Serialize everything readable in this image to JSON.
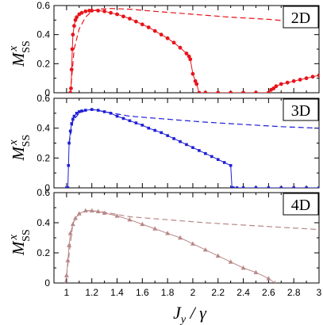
{
  "chart_data": [
    {
      "type": "line",
      "panel_label": "2D",
      "ylabel": "M",
      "ylabel_sup": "x",
      "ylabel_sub": "SS",
      "xlim": [
        0.9,
        3.0
      ],
      "ylim": [
        0,
        0.6
      ],
      "yticks": [
        "0",
        "0.2",
        "0.4",
        "0.6"
      ],
      "color": "#e8141b",
      "series": [
        {
          "style": "markers",
          "x": [
            1.03,
            1.035,
            1.04,
            1.045,
            1.05,
            1.06,
            1.07,
            1.08,
            1.1,
            1.12,
            1.15,
            1.18,
            1.2,
            1.25,
            1.3,
            1.35,
            1.4,
            1.45,
            1.5,
            1.55,
            1.6,
            1.65,
            1.7,
            1.75,
            1.8,
            1.85,
            1.9,
            1.95,
            1.97,
            1.98,
            2.0,
            2.02,
            2.03,
            2.05,
            2.1,
            2.2,
            2.3,
            2.4,
            2.5,
            2.6,
            2.62,
            2.64,
            2.66,
            2.7,
            2.75,
            2.8,
            2.85,
            2.9,
            2.95,
            3.0
          ],
          "y": [
            0,
            0.03,
            0.16,
            0.3,
            0.4,
            0.46,
            0.5,
            0.52,
            0.54,
            0.55,
            0.56,
            0.565,
            0.565,
            0.565,
            0.56,
            0.55,
            0.54,
            0.525,
            0.51,
            0.49,
            0.47,
            0.45,
            0.425,
            0.4,
            0.375,
            0.345,
            0.31,
            0.27,
            0.25,
            0.23,
            0.13,
            0.08,
            0.06,
            0,
            0,
            0,
            0,
            0,
            0,
            0,
            0.02,
            0.03,
            0.045,
            0.06,
            0.07,
            0.08,
            0.09,
            0.1,
            0.11,
            0.12
          ]
        },
        {
          "style": "dashed",
          "x": [
            1.03,
            1.06,
            1.1,
            1.15,
            1.2,
            1.25,
            1.35,
            1.5,
            1.7,
            2.0,
            2.3,
            2.6,
            2.8
          ],
          "y": [
            0,
            0.3,
            0.44,
            0.52,
            0.56,
            0.575,
            0.58,
            0.575,
            0.56,
            0.54,
            0.52,
            0.505,
            0.49
          ]
        }
      ]
    },
    {
      "type": "line",
      "panel_label": "3D",
      "ylabel": "M",
      "ylabel_sup": "x",
      "ylabel_sub": "SS",
      "xlim": [
        0.9,
        3.0
      ],
      "ylim": [
        0,
        0.6
      ],
      "yticks": [
        "0",
        "0.2",
        "0.4",
        "0.6"
      ],
      "color": "#1f1fd6",
      "series": [
        {
          "style": "markers",
          "x": [
            1.0,
            1.01,
            1.015,
            1.02,
            1.03,
            1.04,
            1.05,
            1.06,
            1.08,
            1.1,
            1.12,
            1.15,
            1.2,
            1.25,
            1.3,
            1.35,
            1.4,
            1.45,
            1.5,
            1.55,
            1.6,
            1.65,
            1.7,
            1.75,
            1.8,
            1.85,
            1.9,
            1.95,
            2.0,
            2.05,
            2.1,
            2.15,
            2.2,
            2.25,
            2.3,
            2.31,
            2.32,
            2.35,
            2.4,
            2.5,
            2.6,
            2.7,
            2.8,
            2.9,
            3.0
          ],
          "y": [
            0,
            0,
            0.15,
            0.3,
            0.38,
            0.43,
            0.46,
            0.48,
            0.5,
            0.51,
            0.515,
            0.52,
            0.525,
            0.52,
            0.51,
            0.5,
            0.48,
            0.465,
            0.45,
            0.435,
            0.42,
            0.4,
            0.385,
            0.37,
            0.35,
            0.33,
            0.31,
            0.29,
            0.27,
            0.25,
            0.23,
            0.21,
            0.19,
            0.17,
            0.15,
            0.0,
            0,
            0,
            0,
            0,
            0,
            0,
            0,
            0,
            0
          ]
        },
        {
          "style": "dashed",
          "x": [
            1.02,
            1.05,
            1.1,
            1.15,
            1.2,
            1.3,
            1.5,
            1.8,
            2.1,
            2.4,
            2.7,
            3.0
          ],
          "y": [
            0.3,
            0.45,
            0.5,
            0.52,
            0.525,
            0.51,
            0.48,
            0.46,
            0.44,
            0.425,
            0.41,
            0.4
          ]
        }
      ]
    },
    {
      "type": "line",
      "panel_label": "4D",
      "ylabel": "M",
      "ylabel_sup": "x",
      "ylabel_sub": "SS",
      "xlabel": "J",
      "xlabel_sub": "y",
      "xlabel_tail": " / γ",
      "xlim": [
        0.9,
        3.0
      ],
      "ylim": [
        0,
        0.6
      ],
      "yticks": [
        "0",
        "0.2",
        "0.4",
        "0.6"
      ],
      "xticks": [
        "1",
        "1.2",
        "1.4",
        "1.6",
        "1.8",
        "2",
        "2.2",
        "2.4",
        "2.6",
        "2.8",
        "3"
      ],
      "color": "#b98888",
      "series": [
        {
          "style": "markers",
          "x": [
            0.99,
            1.0,
            1.01,
            1.02,
            1.03,
            1.05,
            1.07,
            1.1,
            1.15,
            1.2,
            1.25,
            1.3,
            1.4,
            1.5,
            1.6,
            1.7,
            1.8,
            1.9,
            2.0,
            2.1,
            2.2,
            2.3,
            2.4,
            2.5,
            2.6,
            2.65
          ],
          "y": [
            0,
            0.05,
            0.15,
            0.25,
            0.33,
            0.39,
            0.43,
            0.46,
            0.48,
            0.48,
            0.475,
            0.465,
            0.445,
            0.42,
            0.39,
            0.36,
            0.33,
            0.3,
            0.26,
            0.22,
            0.18,
            0.14,
            0.1,
            0.07,
            0.03,
            0
          ]
        },
        {
          "style": "dashed",
          "x": [
            1.0,
            1.05,
            1.1,
            1.15,
            1.2,
            1.3,
            1.5,
            1.8,
            2.1,
            2.4,
            2.7,
            3.0
          ],
          "y": [
            0.05,
            0.4,
            0.46,
            0.48,
            0.48,
            0.47,
            0.44,
            0.42,
            0.4,
            0.385,
            0.37,
            0.355
          ]
        }
      ]
    }
  ]
}
